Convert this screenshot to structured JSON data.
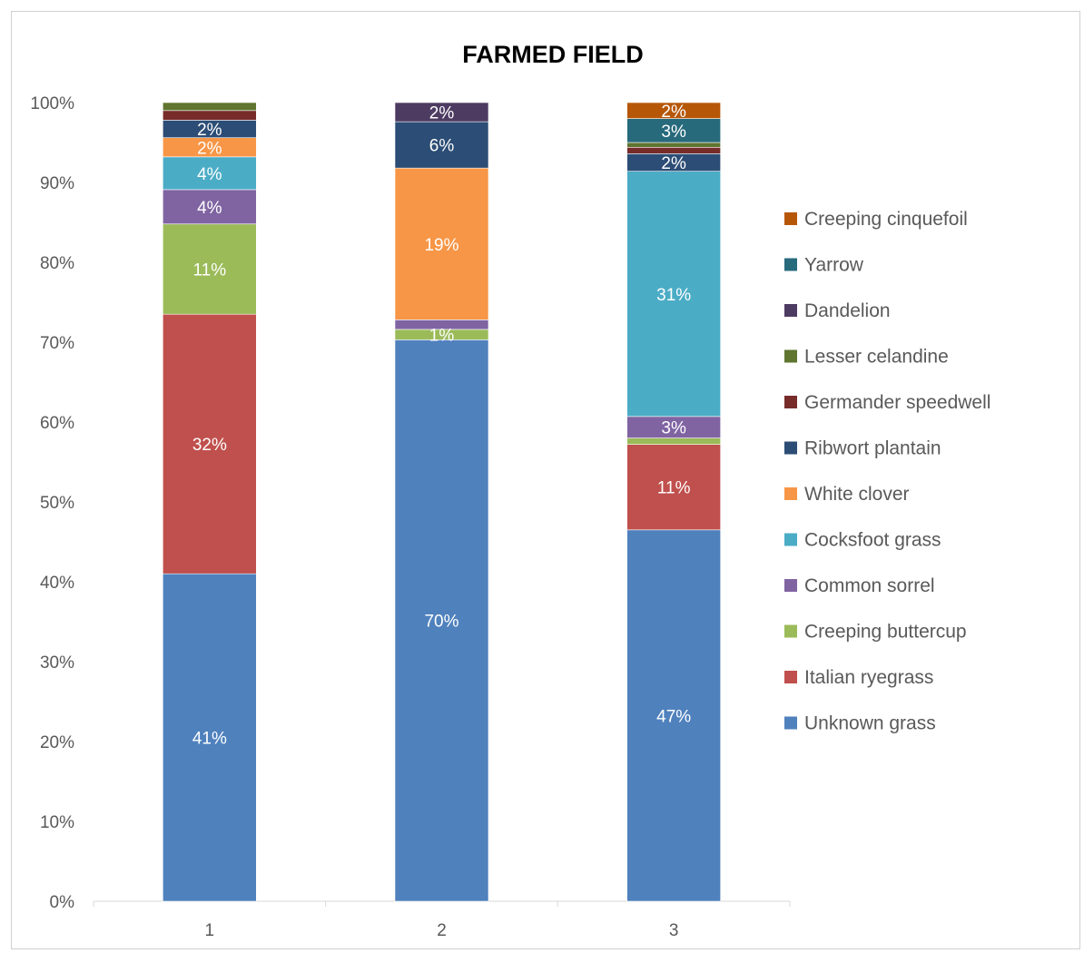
{
  "chart_data": {
    "type": "bar",
    "stacked": true,
    "percent_stacked": true,
    "title": "FARMED FIELD",
    "categories": [
      "1",
      "2",
      "3"
    ],
    "y_ticks": [
      "0%",
      "10%",
      "20%",
      "30%",
      "40%",
      "50%",
      "60%",
      "70%",
      "80%",
      "90%",
      "100%"
    ],
    "ylim": [
      0,
      100
    ],
    "legend_position": "right",
    "grid": false,
    "series": [
      {
        "name": "Unknown grass",
        "color": "#4f81bd",
        "values": [
          41,
          70.3,
          46.5
        ],
        "labels": [
          "41%",
          "70%",
          "47%"
        ]
      },
      {
        "name": "Italian ryegrass",
        "color": "#c0504d",
        "values": [
          32.5,
          0,
          10.7
        ],
        "labels": [
          "32%",
          "",
          "11%"
        ]
      },
      {
        "name": "Creeping buttercup",
        "color": "#9bbb59",
        "values": [
          11.3,
          1.3,
          0.8
        ],
        "labels": [
          "11%",
          "1%",
          ""
        ]
      },
      {
        "name": "Common sorrel",
        "color": "#8064a2",
        "values": [
          4.3,
          1.2,
          2.7
        ],
        "labels": [
          "4%",
          "",
          "3%"
        ]
      },
      {
        "name": "Cocksfoot grass",
        "color": "#4bacc6",
        "values": [
          4.1,
          0,
          30.7
        ],
        "labels": [
          "4%",
          "",
          "31%"
        ]
      },
      {
        "name": "White clover",
        "color": "#f79646",
        "values": [
          2.4,
          19,
          0
        ],
        "labels": [
          "2%",
          "19%",
          ""
        ]
      },
      {
        "name": "Ribwort plantain",
        "color": "#2c4d75",
        "values": [
          2.2,
          5.8,
          2.2
        ],
        "labels": [
          "2%",
          "6%",
          "2%"
        ]
      },
      {
        "name": "Germander speedwell",
        "color": "#772c2a",
        "values": [
          1.2,
          0,
          0.8
        ],
        "labels": [
          "",
          "",
          ""
        ]
      },
      {
        "name": "Lesser celandine",
        "color": "#5f7530",
        "values": [
          1.0,
          0,
          0.6
        ],
        "labels": [
          "",
          "",
          ""
        ]
      },
      {
        "name": "Dandelion",
        "color": "#4d3b62",
        "values": [
          0,
          2.4,
          0
        ],
        "labels": [
          "",
          "2%",
          ""
        ]
      },
      {
        "name": "Yarrow",
        "color": "#276a7c",
        "values": [
          0,
          0,
          3.0
        ],
        "labels": [
          "",
          "",
          "3%"
        ]
      },
      {
        "name": "Creeping cinquefoil",
        "color": "#b65708",
        "values": [
          0,
          0,
          2.0
        ],
        "labels": [
          "",
          "",
          "2%"
        ]
      }
    ]
  }
}
